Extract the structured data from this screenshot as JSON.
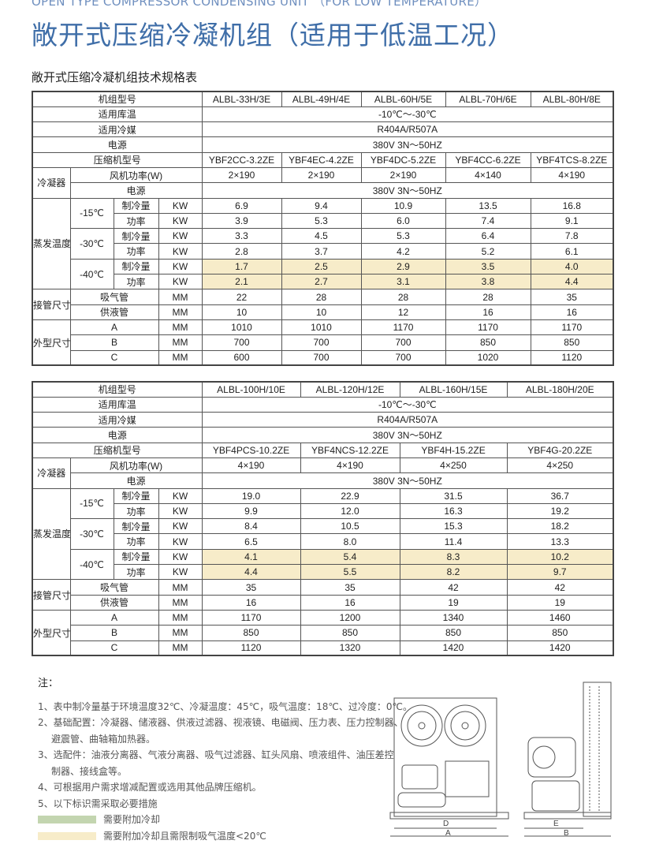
{
  "header": {
    "english_title": "OPEN TYPE COMPRESSOR CONDENSING UNIT （FOR LOW TEMPERATURE）",
    "title": "敞开式压缩冷凝机组（适用于低温工况）",
    "subtitle": "敞开式压缩冷凝机组技术规格表"
  },
  "labels": {
    "model": "机组型号",
    "storage_temp": "适用库温",
    "refrigerant": "适用冷媒",
    "power": "电源",
    "compressor": "压缩机型号",
    "condenser": "冷凝器",
    "fan_power": "风机功率(W)",
    "cond_power": "电源",
    "evap": "蒸发温度",
    "t15": "-15℃",
    "t30": "-30℃",
    "t40": "-40℃",
    "cooling": "制冷量",
    "power_kw": "功率",
    "kw": "KW",
    "pipe": "接管尺寸",
    "suction": "吸气管",
    "liquid": "供液管",
    "mm": "MM",
    "dims": "外型尺寸",
    "a": "A",
    "b": "B",
    "c": "C"
  },
  "colors": {
    "title": "#3f6ea8",
    "highlight_yellow": "#f7ecc9",
    "highlight_green": "#c3d5b0"
  },
  "tables": [
    {
      "models": [
        "ALBL-33H/3E",
        "ALBL-49H/4E",
        "ALBL-60H/5E",
        "ALBL-70H/6E",
        "ALBL-80H/8E"
      ],
      "storage_temp": "-10℃～-30℃",
      "refrigerant": "R404A/R507A",
      "power": "380V 3N～50HZ",
      "compressors": [
        "YBF2CC-3.2ZE",
        "YBF4EC-4.2ZE",
        "YBF4DC-5.2ZE",
        "YBF4CC-6.2ZE",
        "YBF4TCS-8.2ZE"
      ],
      "fan_power": [
        "2×190",
        "2×190",
        "2×190",
        "4×140",
        "4×190"
      ],
      "cond_power": "380V 3N～50HZ",
      "c15": [
        "6.9",
        "9.4",
        "10.9",
        "13.5",
        "16.8"
      ],
      "p15": [
        "3.9",
        "5.3",
        "6.0",
        "7.4",
        "9.1"
      ],
      "c30": [
        "3.3",
        "4.5",
        "5.3",
        "6.4",
        "7.8"
      ],
      "p30": [
        "2.8",
        "3.7",
        "4.2",
        "5.2",
        "6.1"
      ],
      "c40": [
        "1.7",
        "2.5",
        "2.9",
        "3.5",
        "4.0"
      ],
      "p40": [
        "2.1",
        "2.7",
        "3.1",
        "3.8",
        "4.4"
      ],
      "suction": [
        "22",
        "28",
        "28",
        "28",
        "35"
      ],
      "liquid": [
        "10",
        "10",
        "12",
        "16",
        "16"
      ],
      "a": [
        "1010",
        "1010",
        "1170",
        "1170",
        "1170"
      ],
      "b": [
        "700",
        "700",
        "700",
        "850",
        "850"
      ],
      "c": [
        "600",
        "700",
        "700",
        "1020",
        "1120"
      ]
    },
    {
      "models": [
        "ALBL-100H/10E",
        "ALBL-120H/12E",
        "ALBL-160H/15E",
        "ALBL-180H/20E"
      ],
      "storage_temp": "-10℃～-30℃",
      "refrigerant": "R404A/R507A",
      "power": "380V 3N～50HZ",
      "compressors": [
        "YBF4PCS-10.2ZE",
        "YBF4NCS-12.2ZE",
        "YBF4H-15.2ZE",
        "YBF4G-20.2ZE"
      ],
      "fan_power": [
        "4×190",
        "4×190",
        "4×250",
        "4×250"
      ],
      "cond_power": "380V 3N～50HZ",
      "c15": [
        "19.0",
        "22.9",
        "31.5",
        "36.7"
      ],
      "p15": [
        "9.9",
        "12.0",
        "16.3",
        "19.2"
      ],
      "c30": [
        "8.4",
        "10.5",
        "15.3",
        "18.2"
      ],
      "p30": [
        "6.5",
        "8.0",
        "11.4",
        "13.3"
      ],
      "c40": [
        "4.1",
        "5.4",
        "8.3",
        "10.2"
      ],
      "p40": [
        "4.4",
        "5.5",
        "8.2",
        "9.7"
      ],
      "suction": [
        "35",
        "35",
        "42",
        "42"
      ],
      "liquid": [
        "16",
        "16",
        "19",
        "19"
      ],
      "a": [
        "1170",
        "1200",
        "1340",
        "1460"
      ],
      "b": [
        "850",
        "850",
        "850",
        "850"
      ],
      "c": [
        "1120",
        "1320",
        "1420",
        "1420"
      ]
    }
  ],
  "notes": {
    "heading": "注：",
    "items": [
      "1、表中制冷量基于环境温度32℃、冷凝温度：45℃，吸气温度：18℃、过冷度：0℃。",
      "2、基础配置：冷凝器、储液器、供液过滤器、视液镜、电磁阀、压力表、压力控制器、",
      "避震管、曲轴箱加热器。",
      "3、选配件：油液分离器、气液分离器、吸气过滤器、缸头风扇、喷液组件、油压差控",
      "制器、接线盒等。",
      "4、可根据用户需求增减配置或选用其他品牌压缩机。",
      "5、以下标识需采取必要措施"
    ],
    "legend": [
      {
        "label": "需要附加冷却",
        "color": "#c3d5b0"
      },
      {
        "label": "需要附加冷却且需限制吸气温度<20℃",
        "color": "#f7ecc9"
      }
    ]
  },
  "diagram": {
    "labels": [
      "D",
      "A",
      "E",
      "B"
    ]
  }
}
